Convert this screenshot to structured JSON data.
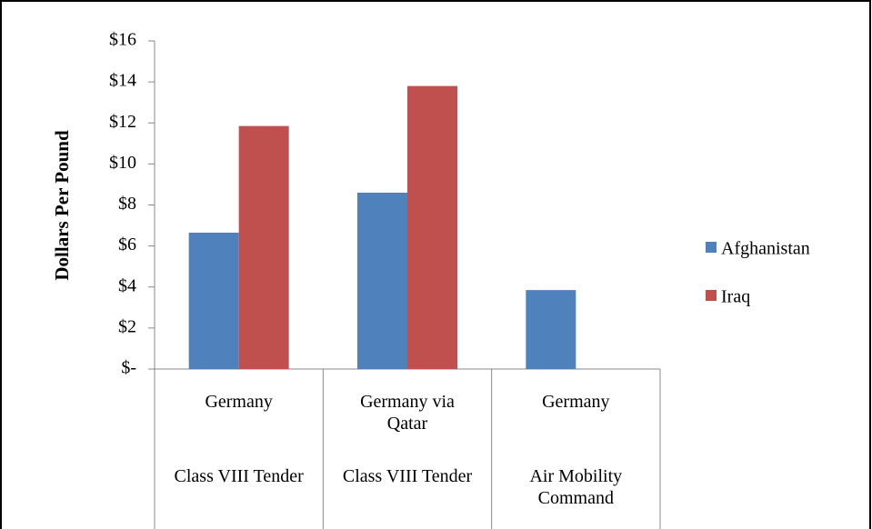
{
  "chart_data": {
    "type": "bar",
    "ylabel": "Dollars Per Pound",
    "categories": [
      "Germany",
      "Germany via Qatar",
      "Germany"
    ],
    "subcategories": [
      "Class VIII Tender",
      "Class VIII Tender",
      "Air Mobility Command"
    ],
    "series": [
      {
        "name": "Afghanistan",
        "color": "#4f81bd",
        "values": [
          6.65,
          8.6,
          3.85
        ]
      },
      {
        "name": "Iraq",
        "color": "#c0504d",
        "values": [
          11.85,
          13.8,
          null
        ]
      }
    ],
    "ylim": [
      0,
      16
    ],
    "yticks": [
      {
        "value": 0,
        "label": "$-"
      },
      {
        "value": 2,
        "label": "$2"
      },
      {
        "value": 4,
        "label": "$4"
      },
      {
        "value": 6,
        "label": "$6"
      },
      {
        "value": 8,
        "label": "$8"
      },
      {
        "value": 10,
        "label": "$10"
      },
      {
        "value": 12,
        "label": "$12"
      },
      {
        "value": 14,
        "label": "$14"
      },
      {
        "value": 16,
        "label": "$16"
      }
    ],
    "legend": "right"
  }
}
